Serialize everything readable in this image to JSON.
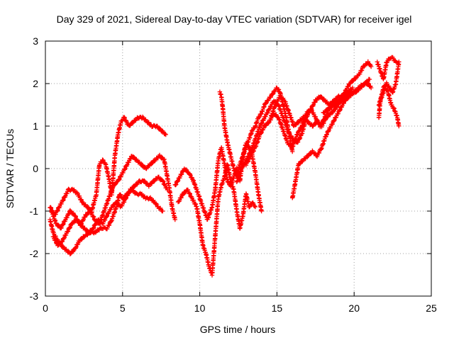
{
  "chart_data": {
    "type": "scatter",
    "title": "Day 329 of 2021, Sidereal Day-to-day VTEC variation (SDTVAR) for receiver igel",
    "xlabel": "GPS time / hours",
    "ylabel": "SDTVAR / TECUs",
    "xlim": [
      0,
      25
    ],
    "ylim": [
      -3,
      3
    ],
    "x_ticks": [
      "0",
      "5",
      "10",
      "15",
      "20",
      "25"
    ],
    "y_ticks": [
      "-3",
      "-2",
      "-1",
      "0",
      "1",
      "2",
      "3"
    ],
    "grid": true,
    "legend": "none",
    "marker": "plus",
    "color": "#ff0000",
    "tracks": [
      {
        "x": [
          0.3,
          0.5,
          0.8,
          1.0,
          1.3,
          1.6,
          1.9,
          2.2,
          2.5,
          2.9,
          3.2,
          3.6,
          4.0,
          4.3,
          4.6,
          4.8,
          5.0,
          5.3,
          5.6,
          5.9,
          6.2,
          6.5,
          6.8,
          7.1,
          7.3,
          7.6
        ],
        "y": [
          -1.2,
          -1.5,
          -1.7,
          -1.8,
          -1.9,
          -2.0,
          -1.9,
          -1.7,
          -1.6,
          -1.5,
          -1.5,
          -1.4,
          -1.4,
          -1.2,
          -0.9,
          -0.6,
          -0.7,
          -0.6,
          -0.5,
          -0.6,
          -0.6,
          -0.7,
          -0.7,
          -0.8,
          -0.9,
          -1.0
        ]
      },
      {
        "x": [
          0.4,
          0.7,
          1.0,
          1.3,
          1.6,
          1.9,
          2.2,
          2.5,
          2.8,
          3.1,
          3.4,
          3.7,
          4.0,
          4.3,
          4.6,
          4.9,
          5.2,
          5.5,
          5.8,
          6.1,
          6.4,
          6.7,
          7.0,
          7.3,
          7.6,
          7.9
        ],
        "y": [
          -1.0,
          -1.3,
          -1.4,
          -1.2,
          -1.0,
          -1.1,
          -1.3,
          -1.4,
          -1.5,
          -1.4,
          -1.2,
          -1.3,
          -1.1,
          -0.9,
          -0.8,
          -0.9,
          -0.7,
          -0.5,
          -0.4,
          -0.3,
          -0.3,
          -0.4,
          -0.3,
          -0.2,
          -0.3,
          -0.5
        ]
      },
      {
        "x": [
          0.3,
          0.6,
          0.9,
          1.2,
          1.5,
          1.8,
          2.1,
          2.4,
          2.7,
          3.0,
          3.3,
          3.5,
          3.7,
          3.9,
          4.1,
          4.3,
          4.5,
          4.7,
          4.9,
          5.1,
          5.4,
          5.7,
          6.0,
          6.3,
          6.6,
          6.9,
          7.2,
          7.5,
          7.8
        ],
        "y": [
          -0.9,
          -1.1,
          -0.9,
          -0.7,
          -0.5,
          -0.5,
          -0.6,
          -0.8,
          -0.9,
          -1.0,
          -0.6,
          0.1,
          0.2,
          0.1,
          -0.2,
          -0.6,
          0.3,
          0.8,
          1.1,
          1.2,
          1.0,
          1.1,
          1.2,
          1.2,
          1.1,
          1.0,
          1.0,
          0.9,
          0.8
        ]
      },
      {
        "x": [
          0.5,
          0.8,
          1.1,
          1.4,
          1.7,
          2.0,
          2.3,
          2.6,
          2.9,
          3.2,
          3.5,
          3.8,
          4.1,
          4.4,
          4.7,
          5.0,
          5.3,
          5.6,
          5.9,
          6.2,
          6.5,
          6.8,
          7.1,
          7.4,
          7.7,
          8.0,
          8.2,
          8.4
        ],
        "y": [
          -1.6,
          -1.8,
          -1.7,
          -1.5,
          -1.3,
          -1.2,
          -1.3,
          -1.1,
          -1.0,
          -1.2,
          -1.3,
          -1.0,
          -0.7,
          -0.4,
          -0.3,
          -0.1,
          0.1,
          0.3,
          0.2,
          0.1,
          0.0,
          0.1,
          0.2,
          0.3,
          0.2,
          -0.4,
          -0.9,
          -1.2
        ]
      },
      {
        "x": [
          8.6,
          8.9,
          9.2,
          9.5,
          9.8,
          10.0,
          10.2,
          10.4,
          10.6,
          10.8,
          11.0,
          11.2,
          11.4,
          11.6,
          11.8,
          12.0,
          12.2,
          12.4,
          12.6,
          12.8,
          13.0,
          13.2,
          13.4,
          13.6
        ],
        "y": [
          -0.8,
          -0.6,
          -0.5,
          -0.7,
          -0.9,
          -1.3,
          -1.8,
          -2.0,
          -2.3,
          -2.5,
          -1.6,
          -0.7,
          -0.4,
          -0.2,
          0.1,
          -0.3,
          -0.5,
          -1.0,
          -1.4,
          -1.1,
          -0.6,
          -0.9,
          -0.8,
          -0.9
        ]
      },
      {
        "x": [
          8.4,
          8.7,
          9.0,
          9.3,
          9.6,
          9.9,
          10.2,
          10.5,
          10.8,
          11.0,
          11.2,
          11.4,
          11.6,
          11.8,
          12.0,
          12.2,
          12.4,
          12.6,
          12.8,
          13.0,
          13.2,
          13.4,
          13.6,
          13.8,
          14.0
        ],
        "y": [
          -0.4,
          -0.2,
          0.0,
          -0.1,
          -0.3,
          -0.6,
          -0.9,
          -1.2,
          -0.9,
          -0.5,
          0.2,
          0.5,
          0.1,
          -0.3,
          -0.4,
          -0.2,
          0.0,
          -0.3,
          0.3,
          0.6,
          0.5,
          0.3,
          -0.1,
          -0.6,
          -1.0
        ]
      },
      {
        "x": [
          11.3,
          11.4,
          11.5,
          11.6,
          11.8,
          12.0,
          12.2,
          12.4,
          12.6,
          12.8,
          13.0,
          13.2,
          13.4,
          13.6,
          13.8,
          14.0,
          14.2,
          14.4,
          14.6,
          14.8,
          15.0,
          15.2,
          15.4,
          15.6,
          15.8,
          16.0
        ],
        "y": [
          1.8,
          1.7,
          1.4,
          1.0,
          0.6,
          0.3,
          0.0,
          -0.2,
          0.1,
          0.3,
          0.5,
          0.7,
          0.9,
          1.0,
          1.2,
          1.3,
          1.5,
          1.6,
          1.7,
          1.8,
          1.9,
          1.8,
          1.5,
          1.2,
          0.8,
          0.4
        ]
      },
      {
        "x": [
          12.4,
          12.7,
          13.0,
          13.3,
          13.6,
          13.9,
          14.2,
          14.5,
          14.8,
          15.1,
          15.4,
          15.7,
          16.0,
          16.3,
          16.6,
          16.9,
          17.2,
          17.5,
          17.8,
          18.1,
          18.4,
          18.7,
          19.0,
          19.3
        ],
        "y": [
          -0.3,
          0.0,
          0.2,
          0.4,
          0.7,
          1.0,
          1.2,
          1.4,
          1.6,
          1.5,
          1.2,
          0.9,
          0.7,
          0.6,
          0.8,
          1.2,
          1.4,
          1.6,
          1.7,
          1.6,
          1.5,
          1.6,
          1.7,
          1.7
        ]
      },
      {
        "x": [
          13.0,
          13.3,
          13.6,
          13.9,
          14.2,
          14.5,
          14.8,
          15.1,
          15.4,
          15.7,
          16.0,
          16.3,
          16.6,
          16.9,
          17.2,
          17.5,
          17.8,
          18.1,
          18.4,
          18.7,
          19.0,
          19.3,
          19.6,
          19.9
        ],
        "y": [
          0.1,
          0.3,
          0.5,
          0.8,
          1.0,
          1.1,
          1.3,
          1.2,
          0.9,
          0.6,
          0.5,
          0.8,
          1.0,
          1.3,
          1.4,
          1.2,
          1.0,
          1.2,
          1.4,
          1.5,
          1.6,
          1.7,
          1.8,
          1.9
        ]
      },
      {
        "x": [
          14.6,
          14.9,
          15.2,
          15.5,
          15.8,
          16.1,
          16.4,
          16.7,
          17.0,
          17.3,
          17.6,
          17.9,
          18.2,
          18.5,
          18.8,
          19.1,
          19.4,
          19.7,
          20.0,
          20.3,
          20.6,
          20.9,
          21.1
        ],
        "y": [
          1.2,
          1.5,
          1.7,
          1.6,
          1.3,
          1.0,
          1.1,
          1.2,
          1.1,
          1.0,
          1.1,
          1.0,
          1.2,
          1.3,
          1.4,
          1.6,
          1.8,
          2.0,
          2.1,
          2.2,
          2.4,
          2.5,
          2.4
        ]
      },
      {
        "x": [
          16.0,
          16.2,
          16.4,
          16.7,
          17.0,
          17.3,
          17.6,
          17.9,
          18.2,
          18.5,
          18.8,
          19.1,
          19.4,
          19.7,
          20.0,
          20.3,
          20.6,
          20.9,
          21.1
        ],
        "y": [
          -0.7,
          -0.3,
          0.1,
          0.2,
          0.3,
          0.4,
          0.3,
          0.5,
          0.8,
          1.0,
          1.2,
          1.4,
          1.6,
          1.7,
          1.8,
          1.9,
          2.0,
          2.0,
          1.9
        ]
      },
      {
        "x": [
          18.0,
          18.3,
          18.6,
          18.9,
          19.2,
          19.5,
          19.8,
          20.1,
          20.4,
          20.7,
          21.0
        ],
        "y": [
          1.3,
          1.4,
          1.5,
          1.5,
          1.6,
          1.7,
          1.8,
          1.8,
          1.9,
          2.0,
          2.1
        ]
      },
      {
        "x": [
          21.5,
          21.7,
          21.9,
          22.1,
          22.3,
          22.5,
          22.7,
          22.9,
          22.7,
          22.5,
          22.3,
          22.1,
          21.9,
          21.7,
          21.6
        ],
        "y": [
          2.5,
          2.3,
          2.1,
          2.5,
          2.6,
          2.6,
          2.5,
          2.5,
          2.0,
          1.8,
          1.9,
          2.0,
          1.9,
          1.6,
          1.2
        ]
      },
      {
        "x": [
          21.6,
          21.8,
          22.0,
          22.2,
          22.4,
          22.6,
          22.8,
          22.9
        ],
        "y": [
          1.5,
          1.7,
          1.9,
          1.8,
          1.5,
          1.4,
          1.2,
          1.0
        ]
      }
    ]
  }
}
